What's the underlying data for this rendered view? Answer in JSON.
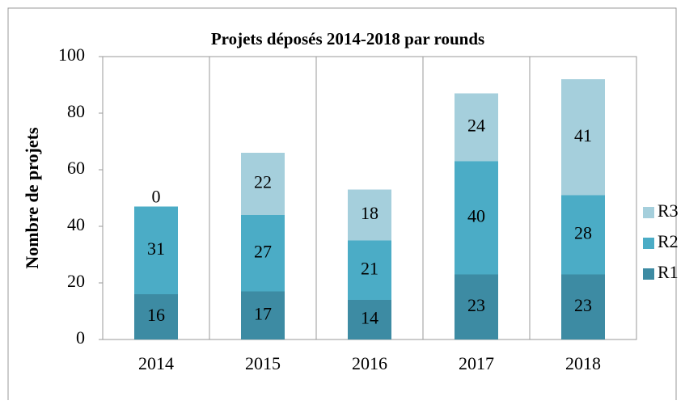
{
  "chart_data": {
    "type": "stacked_bar",
    "title": "Projets déposés 2014-2018 par rounds",
    "y_label": "Nombre de projets",
    "categories": [
      "2014",
      "2015",
      "2016",
      "2017",
      "2018"
    ],
    "series": [
      {
        "name": "R1",
        "color": "#3d8ba3",
        "values": [
          16,
          17,
          14,
          23,
          23
        ]
      },
      {
        "name": "R2",
        "color": "#4bacc6",
        "values": [
          31,
          27,
          21,
          40,
          28
        ]
      },
      {
        "name": "R3",
        "color": "#a5cfdc",
        "values": [
          0,
          22,
          18,
          24,
          41
        ]
      }
    ],
    "ylim": [
      0,
      100
    ],
    "yticks": [
      0,
      20,
      40,
      60,
      80,
      100
    ],
    "legend": "right"
  }
}
